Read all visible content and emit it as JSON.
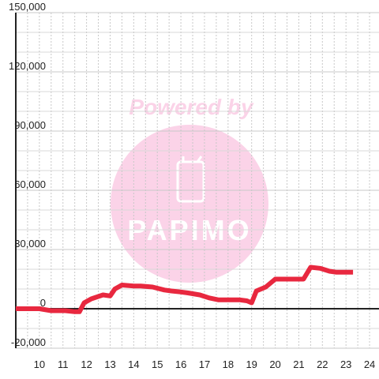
{
  "chart_data": {
    "type": "line",
    "title": "",
    "xlabel": "",
    "ylabel": "",
    "xlim": [
      9.0,
      24.4
    ],
    "ylim": [
      -20000,
      150000
    ],
    "x_ticks": [
      10,
      11,
      12,
      13,
      14,
      15,
      16,
      17,
      18,
      19,
      20,
      21,
      22,
      23,
      24
    ],
    "x_tick_labels": [
      "10",
      "11",
      "12",
      "13",
      "14",
      "15",
      "16",
      "17",
      "18",
      "19",
      "20",
      "21",
      "22",
      "23",
      "24"
    ],
    "y_ticks": [
      -20000,
      0,
      30000,
      60000,
      90000,
      120000,
      150000
    ],
    "y_tick_labels": [
      "-20,000",
      "0",
      "30,000",
      "60,000",
      "90,000",
      "120,000",
      "150,000"
    ],
    "grid": true,
    "legend": "none",
    "series": [
      {
        "color": "#e8283f",
        "x": [
          9.0,
          9.7,
          10.0,
          10.5,
          11.1,
          11.5,
          11.7,
          11.9,
          12.2,
          12.7,
          13.0,
          13.2,
          13.5,
          14.0,
          14.3,
          14.8,
          15.3,
          15.6,
          16.0,
          16.3,
          16.8,
          17.2,
          17.6,
          18.0,
          18.3,
          18.5,
          18.8,
          19.0,
          19.2,
          19.6,
          20.0,
          20.4,
          20.8,
          21.2,
          21.5,
          21.9,
          22.3,
          22.6,
          23.0,
          23.3
        ],
        "y": [
          0,
          0,
          0,
          -1000,
          -1000,
          -1500,
          -1500,
          3000,
          5000,
          7000,
          6500,
          10000,
          12000,
          11500,
          11500,
          11000,
          9500,
          9000,
          8500,
          8000,
          7000,
          5500,
          4500,
          4500,
          4500,
          4500,
          4000,
          3000,
          9000,
          11000,
          15000,
          15000,
          15000,
          15000,
          21000,
          20500,
          19000,
          18500,
          18500,
          18500
        ]
      }
    ]
  },
  "watermark": {
    "powered_by": "Powered by",
    "brand": "PAPIMO",
    "color": "#fbd3e8"
  }
}
